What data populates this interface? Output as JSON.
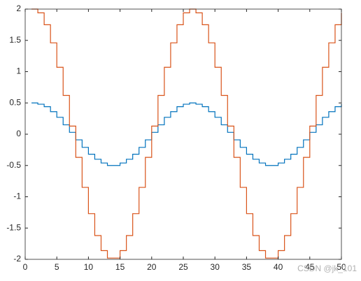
{
  "chart_data": {
    "type": "stairs",
    "x": [
      1,
      2,
      3,
      4,
      5,
      6,
      7,
      8,
      9,
      10,
      11,
      12,
      13,
      14,
      15,
      16,
      17,
      18,
      19,
      20,
      21,
      22,
      23,
      24,
      25,
      26,
      27,
      28,
      29,
      30,
      31,
      32,
      33,
      34,
      35,
      36,
      37,
      38,
      39,
      40,
      41,
      42,
      43,
      44,
      45,
      46,
      47,
      48,
      49,
      50
    ],
    "series": [
      {
        "color": "#0072bd",
        "values": [
          0.5,
          0.48,
          0.44,
          0.36,
          0.27,
          0.15,
          0.03,
          -0.09,
          -0.21,
          -0.32,
          -0.4,
          -0.46,
          -0.5,
          -0.5,
          -0.46,
          -0.4,
          -0.32,
          -0.21,
          -0.09,
          0.03,
          0.15,
          0.27,
          0.36,
          0.44,
          0.48,
          0.5,
          0.48,
          0.44,
          0.36,
          0.27,
          0.15,
          0.03,
          -0.09,
          -0.21,
          -0.32,
          -0.4,
          -0.46,
          -0.5,
          -0.5,
          -0.46,
          -0.4,
          -0.32,
          -0.21,
          -0.09,
          0.03,
          0.15,
          0.27,
          0.36,
          0.44,
          0.48
        ]
      },
      {
        "color": "#d95319",
        "values": [
          2,
          1.94,
          1.75,
          1.46,
          1.07,
          0.62,
          0.13,
          -0.37,
          -0.85,
          -1.27,
          -1.62,
          -1.86,
          -1.98,
          -1.98,
          -1.86,
          -1.62,
          -1.27,
          -0.85,
          -0.37,
          0.13,
          0.62,
          1.07,
          1.46,
          1.75,
          1.94,
          2,
          1.94,
          1.75,
          1.46,
          1.07,
          0.62,
          0.13,
          -0.37,
          -0.85,
          -1.27,
          -1.62,
          -1.86,
          -1.98,
          -1.98,
          -1.86,
          -1.62,
          -1.27,
          -0.85,
          -0.37,
          0.13,
          0.62,
          1.07,
          1.46,
          1.75,
          1.94
        ]
      }
    ],
    "xlim": [
      0,
      50
    ],
    "xticks": [
      0,
      5,
      10,
      15,
      20,
      25,
      30,
      35,
      40,
      45,
      50
    ],
    "ylim": [
      -2,
      2
    ],
    "yticks": [
      -2,
      -1.5,
      -1,
      -0.5,
      0,
      0.5,
      1,
      1.5,
      2
    ],
    "watermark": "CSDN @jk_101"
  }
}
